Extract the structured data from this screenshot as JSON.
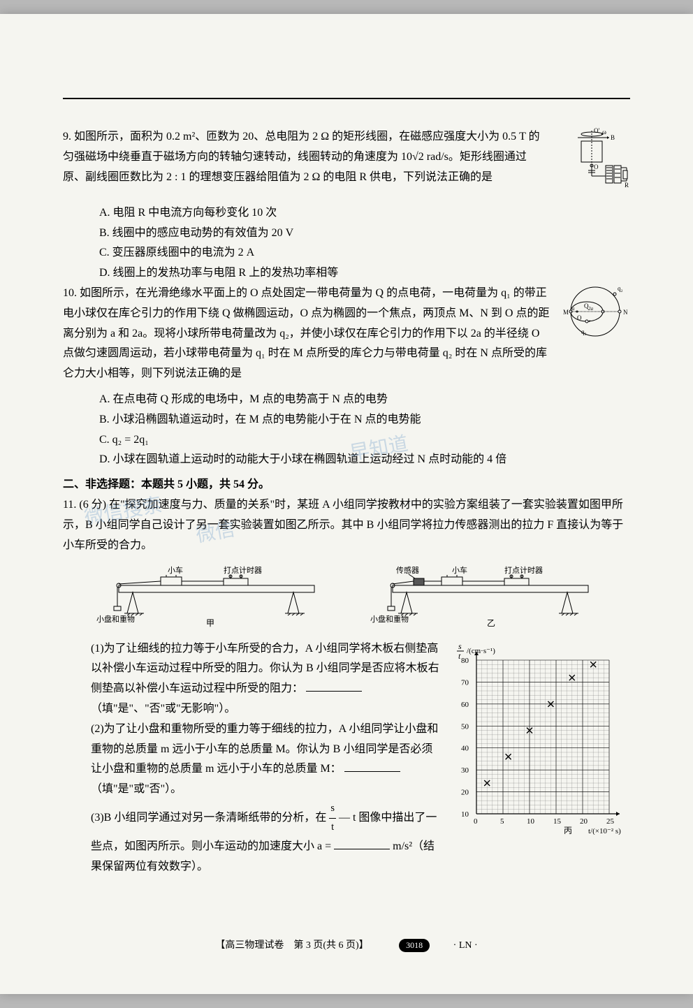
{
  "q9": {
    "num": "9.",
    "text1": "如图所示，面积为 0.2 m²、匝数为 20、总电阻为 2 Ω 的矩形线圈，在磁感应强度大小为 0.5 T 的匀强磁场中绕垂直于磁场方向的转轴匀速转动，线圈转动的角速度为 10√2 rad/s。矩形线圈通过原、副线圈匝数比为 2 : 1 的理想变压器给阻值为 2 Ω 的电阻 R 供电，下列说法正确的是",
    "optA": "A. 电阻 R 中电流方向每秒变化 10 次",
    "optB": "B. 线圈中的感应电动势的有效值为 20 V",
    "optC": "C. 变压器原线圈中的电流为 2 A",
    "optD": "D. 线圈上的发热功率与电阻 R 上的发热功率相等",
    "fig_labels": {
      "Oprime": "O'",
      "omega": "ω",
      "B": "B",
      "O": "O",
      "R": "R"
    }
  },
  "q10": {
    "num": "10.",
    "text1": "如图所示，在光滑绝缘水平面上的 O 点处固定一带电荷量为 Q 的点电荷，一电荷量为 q₁ 的带正电小球仅在库仑引力的作用下绕 Q 做椭圆运动，O 点为椭圆的一个焦点，两顶点 M、N 到 O 点的距离分别为 a 和 2a。现将小球所带电荷量改为 q₂，并使小球仅在库仑引力的作用下以 2a 的半径绕 O 点做匀速圆周运动，若小球带电荷量为 q₁ 时在 M 点所受的库仑力与带电荷量 q₂ 时在 N 点所受的库仑力大小相等，则下列说法正确的是",
    "optA": "A. 在点电荷 Q 形成的电场中，M 点的电势高于 N 点的电势",
    "optB": "B. 小球沿椭圆轨道运动时，在 M 点的电势能小于在 N 点的电势能",
    "optC": "C. q₂ = 2q₁",
    "optD": "D. 小球在圆轨道上运动时的动能大于小球在椭圆轨道上运动经过 N 点时动能的 4 倍",
    "fig_labels": {
      "M": "M",
      "N": "N",
      "O": "O",
      "Q": "Q",
      "q1": "q₁",
      "q2": "q₂",
      "a": "a",
      "2a": "2a"
    }
  },
  "section2": "二、非选择题：本题共 5 小题，共 54 分。",
  "q11": {
    "num": "11.",
    "points": "(6 分)",
    "text1": "在\"探究加速度与力、质量的关系\"时，某班 A 小组同学按教材中的实验方案组装了一套实验装置如图甲所示，B 小组同学自己设计了另一套实验装置如图乙所示。其中 B 小组同学将拉力传感器测出的拉力 F 直接认为等于小车所受的合力。",
    "fig_labels": {
      "car": "小车",
      "timer": "打点计时器",
      "sensor": "传感器",
      "pan": "小盘和重物",
      "jia": "甲",
      "yi": "乙"
    },
    "sub1": "(1)为了让细线的拉力等于小车所受的合力，A 小组同学将木板右侧垫高以补偿小车运动过程中所受的阻力。你认为 B 小组同学是否应将木板右侧垫高以补偿小车运动过程中所受的阻力：",
    "sub1_hint": "（填\"是\"、\"否\"或\"无影响\"）。",
    "sub2": "(2)为了让小盘和重物所受的重力等于细线的拉力，A 小组同学让小盘和重物的总质量 m 远小于小车的总质量 M。你认为 B 小组同学是否必须让小盘和重物的总质量 m 远小于小车的总质量 M：",
    "sub2_hint": "（填\"是\"或\"否\"）。",
    "sub3_a": "(3)B 小组同学通过对另一条清晰纸带的分析，在",
    "sub3_frac_num": "s",
    "sub3_frac_den": "t",
    "sub3_b": " — t 图像中描出了一些点，如图丙所示。则小车运动的加速度大小 a =",
    "sub3_unit": "m/s²（结果保留两位有效数字）。",
    "graph": {
      "ylabel_frac_num": "s",
      "ylabel_frac_den": "t",
      "ylabel_unit": "/(cm·s⁻¹)",
      "xlabel": "t/(×10⁻² s)",
      "yticks": [
        10,
        20,
        30,
        40,
        50,
        60,
        70,
        80
      ],
      "xticks": [
        0,
        5,
        10,
        15,
        20,
        25
      ],
      "points": [
        {
          "x": 2,
          "y": 24
        },
        {
          "x": 6,
          "y": 36
        },
        {
          "x": 10,
          "y": 48
        },
        {
          "x": 14,
          "y": 60
        },
        {
          "x": 18,
          "y": 72
        },
        {
          "x": 22,
          "y": 78
        }
      ],
      "grid_color": "#808080",
      "bg": "#f5f5f0",
      "point_marker": "×",
      "bing": "丙"
    }
  },
  "footer": {
    "main": "【高三物理试卷　第 3 页(共 6 页)】",
    "badge": "3018",
    "ln": "· LN ·"
  },
  "watermark": {
    "wm1": "早知道",
    "wm2": "微信搜索",
    "wm3": "微信"
  },
  "colors": {
    "page_bg": "#f5f5f0",
    "text": "#000000",
    "watermark": "rgba(100,150,200,0.3)"
  }
}
